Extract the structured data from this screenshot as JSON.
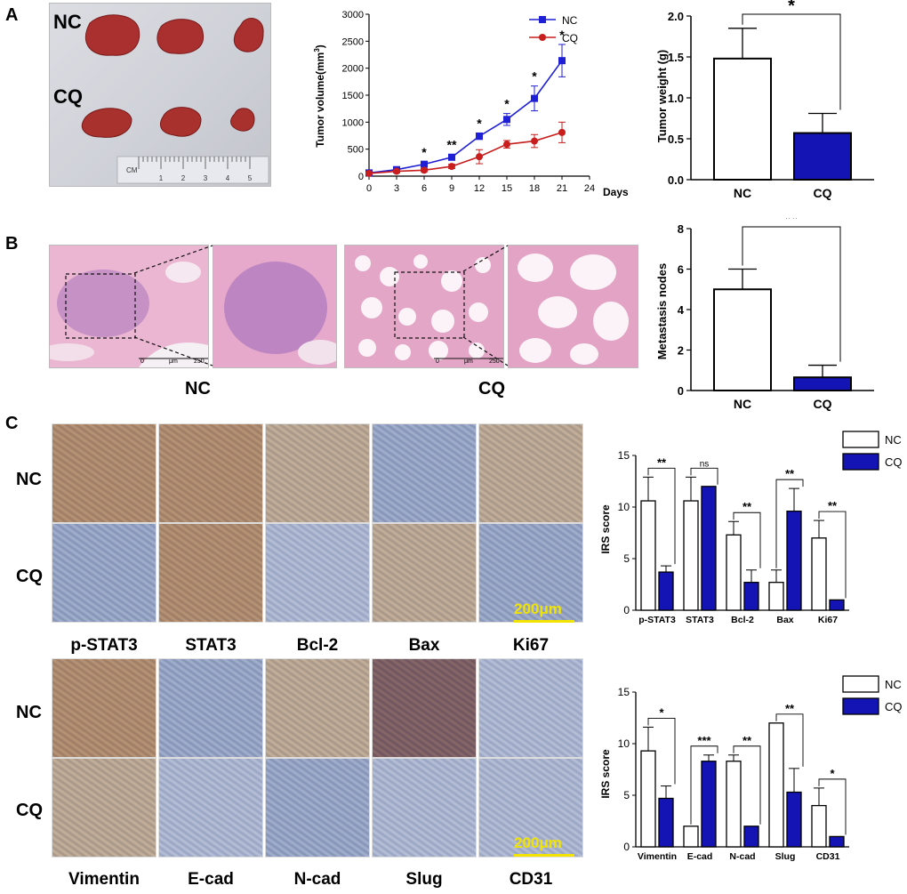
{
  "panel_letters": [
    "A",
    "B",
    "C"
  ],
  "panel_a": {
    "photo_labels": [
      "NC",
      "CQ"
    ],
    "ruler_unit": "CM",
    "ruler_ticks": [
      "1",
      "2",
      "3",
      "4",
      "5"
    ]
  },
  "panel_b": {
    "scale_bar_unit": "μm",
    "scale_bar_start": "0",
    "scale_bar_end": "250",
    "group_labels": [
      "NC",
      "CQ"
    ]
  },
  "panel_c": {
    "row_labels_top": [
      "NC",
      "CQ"
    ],
    "markers_top": [
      "p-STAT3",
      "STAT3",
      "Bcl-2",
      "Bax",
      "Ki67"
    ],
    "row_labels_bottom": [
      "NC",
      "CQ"
    ],
    "markers_bottom": [
      "Vimentin",
      "E-cad",
      "N-cad",
      "Slug",
      "CD31"
    ],
    "scale_bar_label": "200μm"
  },
  "colors": {
    "nc_line": "#1f1fd6",
    "cq_line": "#c81e1e",
    "cq_bar": "#1414b4",
    "nc_bar": "#ffffff",
    "scale_bar": "#f2e400",
    "he_stain": "#e9a3c9",
    "ihc_brown": "#b7936e",
    "ihc_blue": "#9aa6c6"
  },
  "chart_data": [
    {
      "id": "tumor-volume",
      "type": "line",
      "xlabel": "Days",
      "ylabel": "Tumor volume(mm3)",
      "ylabel_main": "Tumor volume(mm",
      "ylabel_sup": "3",
      "ylabel_close": ")",
      "xlim": [
        0,
        24
      ],
      "ylim": [
        0,
        3000
      ],
      "xticks": [
        0,
        3,
        6,
        9,
        12,
        15,
        18,
        21,
        24
      ],
      "yticks": [
        0,
        500,
        1000,
        1500,
        2000,
        2500,
        3000
      ],
      "legend_position": "top-right",
      "series": [
        {
          "name": "NC",
          "x": [
            0,
            3,
            6,
            9,
            12,
            15,
            18,
            21
          ],
          "y": [
            60,
            120,
            220,
            350,
            740,
            1050,
            1440,
            2140
          ],
          "err": [
            20,
            30,
            40,
            50,
            60,
            110,
            230,
            300
          ]
        },
        {
          "name": "CQ",
          "x": [
            0,
            3,
            6,
            9,
            12,
            15,
            18,
            21
          ],
          "y": [
            50,
            90,
            110,
            180,
            360,
            590,
            650,
            810
          ],
          "err": [
            15,
            20,
            30,
            40,
            130,
            70,
            120,
            190
          ]
        }
      ],
      "annotations": [
        {
          "x": 6,
          "text": "*"
        },
        {
          "x": 9,
          "text": "**"
        },
        {
          "x": 12,
          "text": "*"
        },
        {
          "x": 15,
          "text": "*"
        },
        {
          "x": 18,
          "text": "*"
        },
        {
          "x": 21,
          "text": "*"
        }
      ]
    },
    {
      "id": "tumor-weight",
      "type": "bar",
      "categories": [
        "NC",
        "CQ"
      ],
      "values": [
        1.48,
        0.57
      ],
      "err": [
        0.37,
        0.24
      ],
      "ylabel": "Tumor weight (g)",
      "ylim": [
        0,
        2.0
      ],
      "yticks": [
        "0.0",
        "0.5",
        "1.0",
        "1.5",
        "2.0"
      ],
      "significance": "*"
    },
    {
      "id": "metastasis-nodes",
      "type": "bar",
      "categories": [
        "NC",
        "CQ"
      ],
      "values": [
        5.0,
        0.65
      ],
      "err": [
        1.0,
        0.6
      ],
      "ylabel": "Metastasis nodes",
      "ylim": [
        0,
        8
      ],
      "yticks": [
        "0",
        "2",
        "4",
        "6",
        "8"
      ],
      "significance": "**"
    },
    {
      "id": "irs-score-top",
      "type": "bar",
      "categories": [
        "p-STAT3",
        "STAT3",
        "Bcl-2",
        "Bax",
        "Ki67"
      ],
      "ylabel": "IRS score",
      "ylim": [
        0,
        15
      ],
      "yticks": [
        "0",
        "5",
        "10",
        "15"
      ],
      "legend_position": "top-right",
      "series": [
        {
          "name": "NC",
          "values": [
            10.6,
            10.6,
            7.3,
            2.7,
            7.0
          ],
          "err": [
            2.3,
            2.3,
            1.3,
            1.2,
            1.7
          ]
        },
        {
          "name": "CQ",
          "values": [
            3.7,
            12.0,
            2.7,
            9.6,
            1.0
          ],
          "err": [
            0.6,
            0,
            1.2,
            2.2,
            0
          ]
        }
      ],
      "significance": [
        "**",
        "ns",
        "**",
        "**",
        "**"
      ]
    },
    {
      "id": "irs-score-bottom",
      "type": "bar",
      "categories": [
        "Vimentin",
        "E-cad",
        "N-cad",
        "Slug",
        "CD31"
      ],
      "ylabel": "IRS score",
      "ylim": [
        0,
        15
      ],
      "yticks": [
        "0",
        "5",
        "10",
        "15"
      ],
      "legend_position": "top-right",
      "series": [
        {
          "name": "NC",
          "values": [
            9.3,
            2.0,
            8.3,
            12.0,
            4.0
          ],
          "err": [
            2.3,
            0,
            0.6,
            0,
            1.7
          ]
        },
        {
          "name": "CQ",
          "values": [
            4.7,
            8.3,
            2.0,
            5.3,
            1.0
          ],
          "err": [
            1.2,
            0.6,
            0,
            2.3,
            0
          ]
        }
      ],
      "significance": [
        "*",
        "***",
        "**",
        "**",
        "*"
      ]
    }
  ]
}
